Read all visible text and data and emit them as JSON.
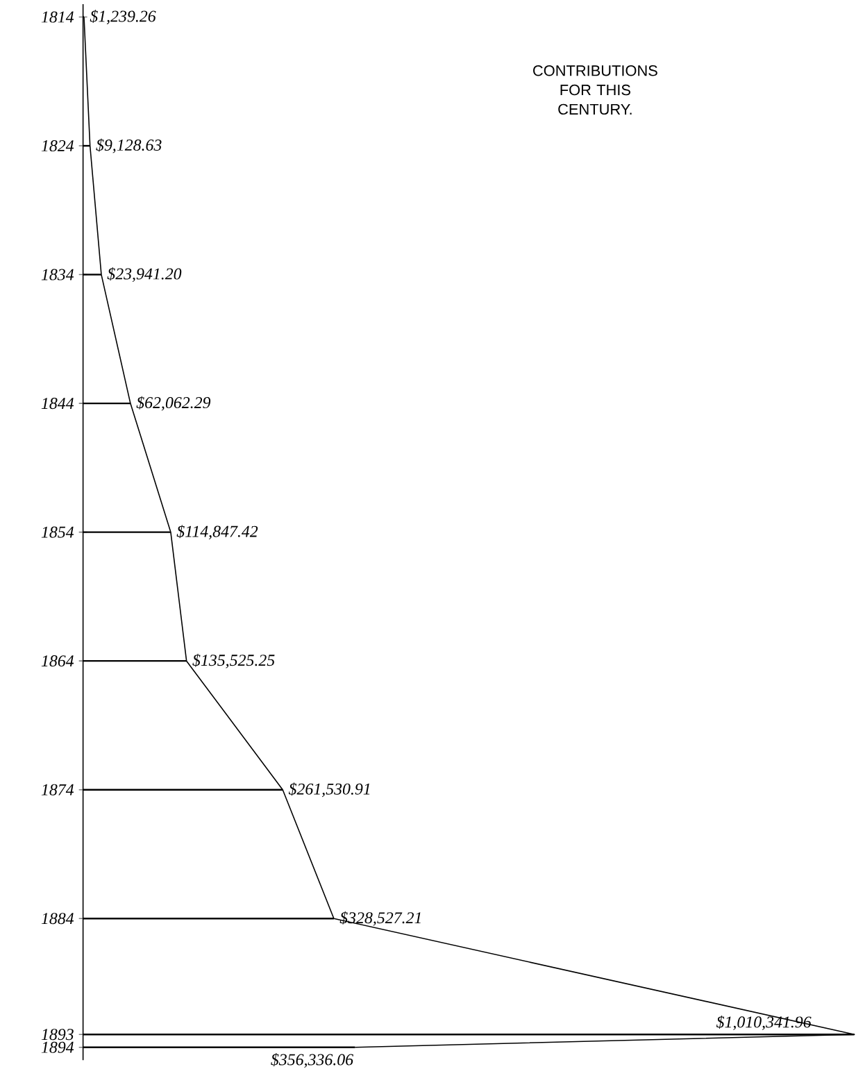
{
  "chart_data": {
    "type": "bar",
    "orientation": "horizontal",
    "title": "CONTRIBUTIONS FOR THIS CENTURY.",
    "x": [
      1814,
      1824,
      1834,
      1844,
      1854,
      1864,
      1874,
      1884,
      1893,
      1894
    ],
    "series": [
      {
        "color": "#000000",
        "values": [
          1239.26,
          9128.63,
          23941.2,
          62062.29,
          114847.42,
          135525.25,
          261530.91,
          328527.21,
          1010341.96,
          356336.06
        ],
        "value_labels": [
          "$1,239.26",
          "$9,128.63",
          "$23,941.20",
          "$62,062.29",
          "$114,847.42",
          "$135,525.25",
          "$261,530.91",
          "$328,527.21",
          "$1,010,341.96",
          "$356,336.06"
        ]
      },
      {
        "type": "line",
        "color": "#000000",
        "marker": "none",
        "values": [
          1239.26,
          9128.63,
          23941.2,
          62062.29,
          114847.42,
          135525.25,
          261530.91,
          328527.21,
          1010341.96,
          356336.06
        ]
      }
    ],
    "ylim": [
      1895,
      1813
    ],
    "yticks": [
      1814,
      1824,
      1834,
      1844,
      1854,
      1864,
      1874,
      1884,
      1893,
      1894
    ],
    "tick_labels": "y"
  }
}
